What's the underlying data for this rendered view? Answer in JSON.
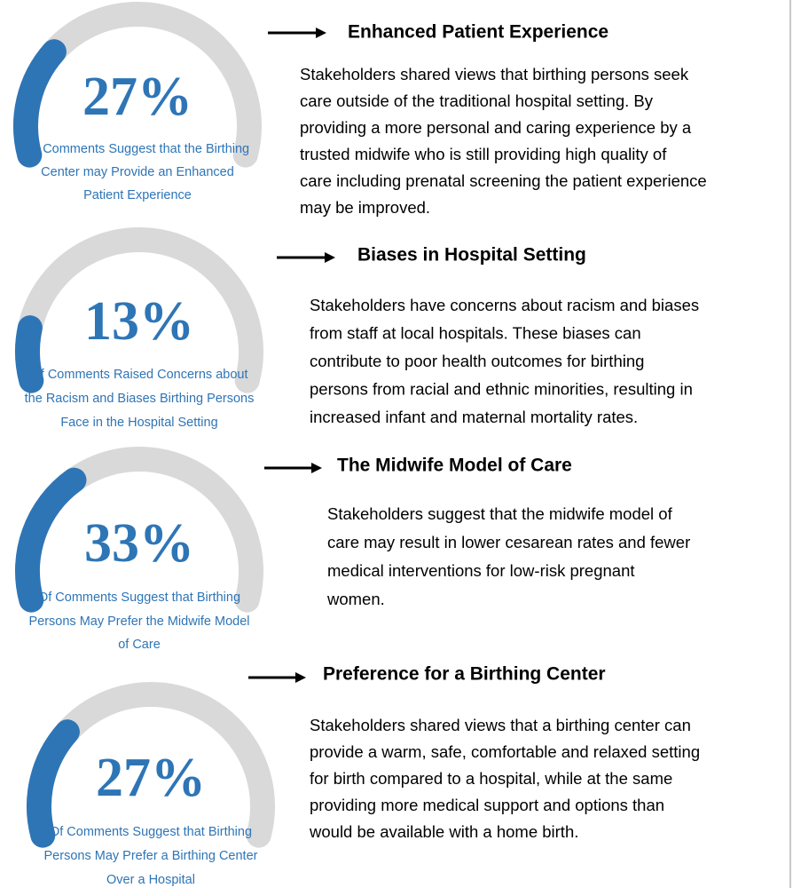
{
  "chart_data": [
    {
      "type": "gauge",
      "value": 27,
      "value_label": "27%",
      "ylim": [
        0,
        100
      ],
      "color": "#2e75b6",
      "track_color": "#d9d9d9",
      "caption": [
        "Of Comments Suggest that the Birthing",
        "Center may Provide an Enhanced",
        "Patient Experience"
      ],
      "heading": "Enhanced Patient Experience",
      "description": [
        "Stakeholders shared views that birthing persons seek",
        "care outside of the traditional hospital setting.  By",
        "providing a more personal and caring experience by a",
        "trusted midwife who is still providing high quality of",
        "care including prenatal screening the patient experience",
        "may be improved."
      ]
    },
    {
      "type": "gauge",
      "value": 13,
      "value_label": "13%",
      "ylim": [
        0,
        100
      ],
      "color": "#2e75b6",
      "track_color": "#d9d9d9",
      "caption": [
        "Of Comments Raised Concerns about",
        "the Racism and Biases Birthing Persons",
        "Face in the Hospital Setting"
      ],
      "heading": "Biases in Hospital Setting",
      "description": [
        "Stakeholders have concerns about racism and biases",
        "from staff at local hospitals.  These biases can",
        "contribute to poor health outcomes for birthing",
        "persons from racial and ethnic minorities, resulting in",
        "increased infant and maternal mortality rates."
      ]
    },
    {
      "type": "gauge",
      "value": 33,
      "value_label": "33%",
      "ylim": [
        0,
        100
      ],
      "color": "#2e75b6",
      "track_color": "#d9d9d9",
      "caption": [
        "Of Comments Suggest that Birthing",
        "Persons May Prefer the Midwife Model",
        "of Care"
      ],
      "heading": "The Midwife Model of Care",
      "description": [
        "Stakeholders suggest that the midwife model of",
        "care may result in lower cesarean rates and fewer",
        "medical interventions for low-risk pregnant",
        "women."
      ]
    },
    {
      "type": "gauge",
      "value": 27,
      "value_label": "27%",
      "ylim": [
        0,
        100
      ],
      "color": "#2e75b6",
      "track_color": "#d9d9d9",
      "caption": [
        "Of Comments Suggest that Birthing",
        "Persons May Prefer a Birthing Center",
        "Over a Hospital"
      ],
      "heading": "Preference for a Birthing Center",
      "description": [
        "Stakeholders shared views that a birthing center can",
        "provide a warm, safe, comfortable and relaxed setting",
        "for birth compared to a hospital, while at the same",
        "providing more medical support and options than",
        "would be available with a home birth."
      ]
    }
  ]
}
